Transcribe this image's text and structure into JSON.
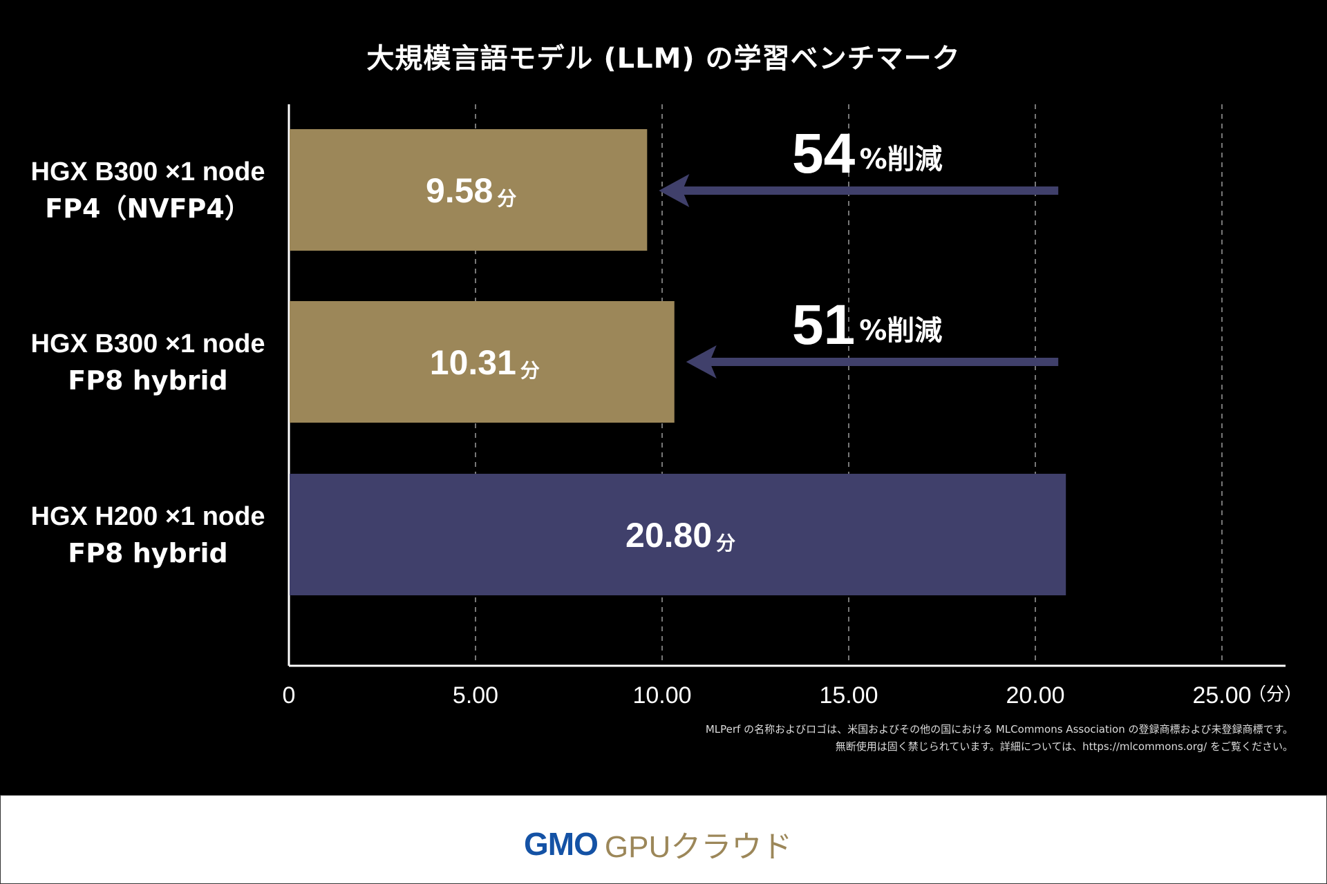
{
  "chart_data": {
    "type": "bar",
    "orientation": "horizontal",
    "title": "大規模言語モデル (LLM) の学習ベンチマーク",
    "categories": [
      [
        "HGX B300 ×1 node",
        "FP4（NVFP4）"
      ],
      [
        "HGX B300 ×1 node",
        "FP8 hybrid"
      ],
      [
        "HGX H200 ×1 node",
        "FP8 hybrid"
      ]
    ],
    "values": [
      9.58,
      10.31,
      20.8
    ],
    "value_labels": [
      "9.58",
      "10.31",
      "20.80"
    ],
    "value_unit": "分",
    "bar_colors": [
      "#9c8759",
      "#9c8759",
      "#40406b"
    ],
    "xlim": [
      0,
      25
    ],
    "xticks": [
      "0",
      "5.00",
      "10.00",
      "15.00",
      "20.00",
      "25.00"
    ],
    "xunit": "（分）",
    "grid": "vertical-dashed",
    "annotations": [
      {
        "number": "54",
        "suffix": "%削減",
        "from": 20.8,
        "to": 9.58
      },
      {
        "number": "51",
        "suffix": "%削減",
        "from": 20.8,
        "to": 10.31
      }
    ],
    "arrow_color": "#40406b"
  },
  "footnote": [
    "MLPerf の名称およびロゴは、米国およびその他の国における MLCommons Association の登録商標および未登録商標です。",
    "無断使用は固く禁じられています。詳細については、https://mlcommons.org/ をご覧ください。"
  ],
  "logo": {
    "brand": "GMO",
    "product": "GPUクラウド",
    "brand_color": "#1452a5",
    "product_color": "#9c8759"
  }
}
